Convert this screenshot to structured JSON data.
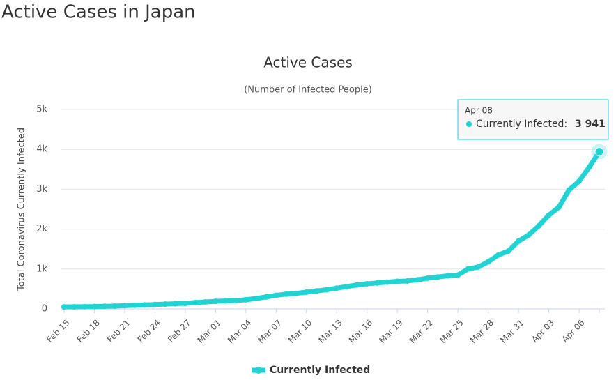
{
  "heading": "Active Cases in Japan",
  "chart_data": {
    "type": "line",
    "title": "Active Cases",
    "subtitle": "(Number of Infected People)",
    "ylabel": "Total Coronavirus Currently Infected",
    "categories": [
      "Feb 15",
      null,
      null,
      "Feb 18",
      null,
      null,
      "Feb 21",
      null,
      null,
      "Feb 24",
      null,
      null,
      "Feb 27",
      null,
      null,
      "Mar 01",
      null,
      null,
      "Mar 04",
      null,
      null,
      "Mar 07",
      null,
      null,
      "Mar 10",
      null,
      null,
      "Mar 13",
      null,
      null,
      "Mar 16",
      null,
      null,
      "Mar 19",
      null,
      null,
      "Mar 22",
      null,
      null,
      "Mar 25",
      null,
      null,
      "Mar 28",
      null,
      null,
      "Mar 31",
      null,
      null,
      "Apr 03",
      null,
      null,
      "Apr 06",
      null,
      "Apr 08"
    ],
    "series": [
      {
        "name": "Currently Infected",
        "color": "#22d3d3",
        "values": [
          50,
          52,
          55,
          60,
          65,
          70,
          80,
          90,
          100,
          110,
          120,
          130,
          140,
          160,
          175,
          190,
          200,
          210,
          230,
          260,
          300,
          340,
          370,
          390,
          420,
          450,
          480,
          520,
          560,
          600,
          630,
          650,
          670,
          690,
          700,
          730,
          770,
          800,
          830,
          850,
          1000,
          1050,
          1180,
          1350,
          1450,
          1700,
          1850,
          2080,
          2350,
          2550,
          2980,
          3200,
          3550,
          3941
        ],
        "value_labels": [
          null,
          null,
          null,
          null,
          null,
          null,
          null,
          null,
          null,
          null,
          null,
          null,
          null,
          null,
          null,
          null,
          null,
          null,
          null,
          null,
          null,
          null,
          null,
          null,
          null,
          null,
          null,
          null,
          null,
          null,
          null,
          null,
          null,
          null,
          null,
          null,
          null,
          null,
          null,
          null,
          null,
          null,
          null,
          null,
          null,
          null,
          null,
          null,
          null,
          null,
          null,
          null,
          null,
          "3 941"
        ]
      }
    ],
    "tooltip_label": "Currently Infected:",
    "ylim": [
      0,
      5000
    ],
    "yticks": [
      0,
      {
        "value": 1000,
        "label": "1k"
      },
      {
        "value": 2000,
        "label": "2k"
      },
      {
        "value": 3000,
        "label": "3k"
      },
      {
        "value": 4000,
        "label": "4k"
      },
      {
        "value": 5000,
        "label": "5k"
      }
    ],
    "grid": true,
    "legend": "bottom"
  }
}
